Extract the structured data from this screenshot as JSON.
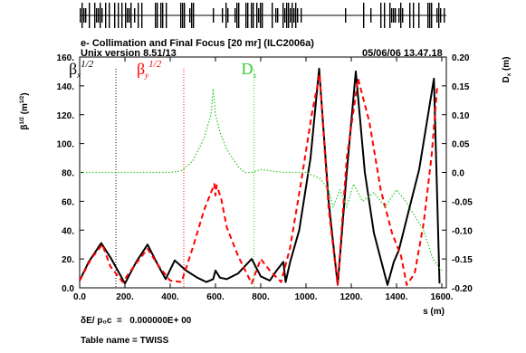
{
  "header": {
    "title": "e- Collimation and Final Focus [20 mr] (ILC2006a)",
    "version": "Unix version 8.51/13",
    "datetime": "05/06/06  13.47.18"
  },
  "footer": {
    "delta_line": "δE/ p₀c  =   0.000000E+ 00",
    "table_name": "Table name = TWISS"
  },
  "colors": {
    "beta_x": "#000000",
    "beta_y": "#ff0000",
    "dx": "#33cc33"
  },
  "chart_data": {
    "type": "line",
    "xlabel": "s (m)",
    "ylabel_left": "β1/2 (m1/2)",
    "ylabel_right": "Dx (m)",
    "xlim": [
      0,
      1620
    ],
    "ylim_left": [
      0,
      160
    ],
    "ylim_right": [
      -0.2,
      0.2
    ],
    "x_ticks": [
      "0.0",
      "200.",
      "400.",
      "600.",
      "800.",
      "1000.",
      "1200.",
      "1400.",
      "1600."
    ],
    "y_ticks_left": [
      "0.0",
      "20.",
      "40.",
      "60.",
      "80.",
      "100.",
      "120.",
      "140.",
      "160."
    ],
    "y_ticks_right": [
      "-0.20",
      "-0.15",
      "-0.10",
      "-0.05",
      "0.0",
      "0.05",
      "0.10",
      "0.15",
      "0.20"
    ],
    "legend_positions_s": [
      160,
      460,
      770
    ],
    "series": [
      {
        "name": "βx1/2",
        "axis": "left",
        "x": [
          0,
          40,
          95,
          140,
          200,
          250,
          300,
          345,
          380,
          420,
          470,
          520,
          560,
          590,
          600,
          620,
          650,
          700,
          760,
          800,
          840,
          870,
          900,
          910,
          930,
          970,
          1020,
          1058,
          1100,
          1140,
          1180,
          1220,
          1260,
          1300,
          1360,
          1388,
          1410,
          1445,
          1500,
          1565,
          1590
        ],
        "y": [
          5,
          18,
          31,
          20,
          3,
          18,
          30,
          16,
          6,
          19,
          12,
          7,
          4,
          6,
          12,
          7,
          6,
          10,
          20,
          8,
          5,
          12,
          18,
          4,
          18,
          40,
          90,
          152,
          60,
          2,
          80,
          150,
          80,
          38,
          2,
          18,
          26,
          48,
          82,
          145,
          3
        ]
      },
      {
        "name": "βy1/2",
        "axis": "left",
        "x": [
          0,
          50,
          100,
          135,
          190,
          240,
          300,
          350,
          400,
          450,
          500,
          550,
          595,
          600,
          605,
          625,
          650,
          700,
          760,
          800,
          840,
          890,
          930,
          980,
          1025,
          1060,
          1100,
          1140,
          1180,
          1230,
          1280,
          1330,
          1380,
          1420,
          1445,
          1480,
          1520,
          1555,
          1580
        ],
        "y": [
          5,
          20,
          30,
          15,
          4,
          15,
          27,
          15,
          5,
          4,
          28,
          54,
          72,
          64,
          71,
          62,
          42,
          22,
          3,
          20,
          12,
          4,
          28,
          75,
          120,
          148,
          55,
          2,
          90,
          145,
          115,
          68,
          38,
          22,
          2,
          10,
          45,
          92,
          140
        ]
      },
      {
        "name": "Dx",
        "axis": "right",
        "x": [
          0,
          200,
          400,
          450,
          500,
          550,
          580,
          590,
          600,
          620,
          650,
          700,
          730,
          760,
          800,
          900,
          1000,
          1060,
          1100,
          1120,
          1150,
          1180,
          1210,
          1250,
          1300,
          1350,
          1400,
          1440,
          1480,
          1520,
          1560,
          1600
        ],
        "y": [
          0.0,
          0.0,
          0.0,
          0.003,
          0.02,
          0.06,
          0.1,
          0.145,
          0.1,
          0.07,
          0.04,
          0.01,
          0.0,
          0.0,
          0.005,
          0.0,
          0.0,
          -0.01,
          -0.03,
          -0.06,
          -0.03,
          -0.06,
          -0.02,
          -0.05,
          -0.035,
          -0.06,
          -0.03,
          -0.05,
          -0.075,
          -0.1,
          -0.15,
          -0.17
        ]
      }
    ]
  }
}
